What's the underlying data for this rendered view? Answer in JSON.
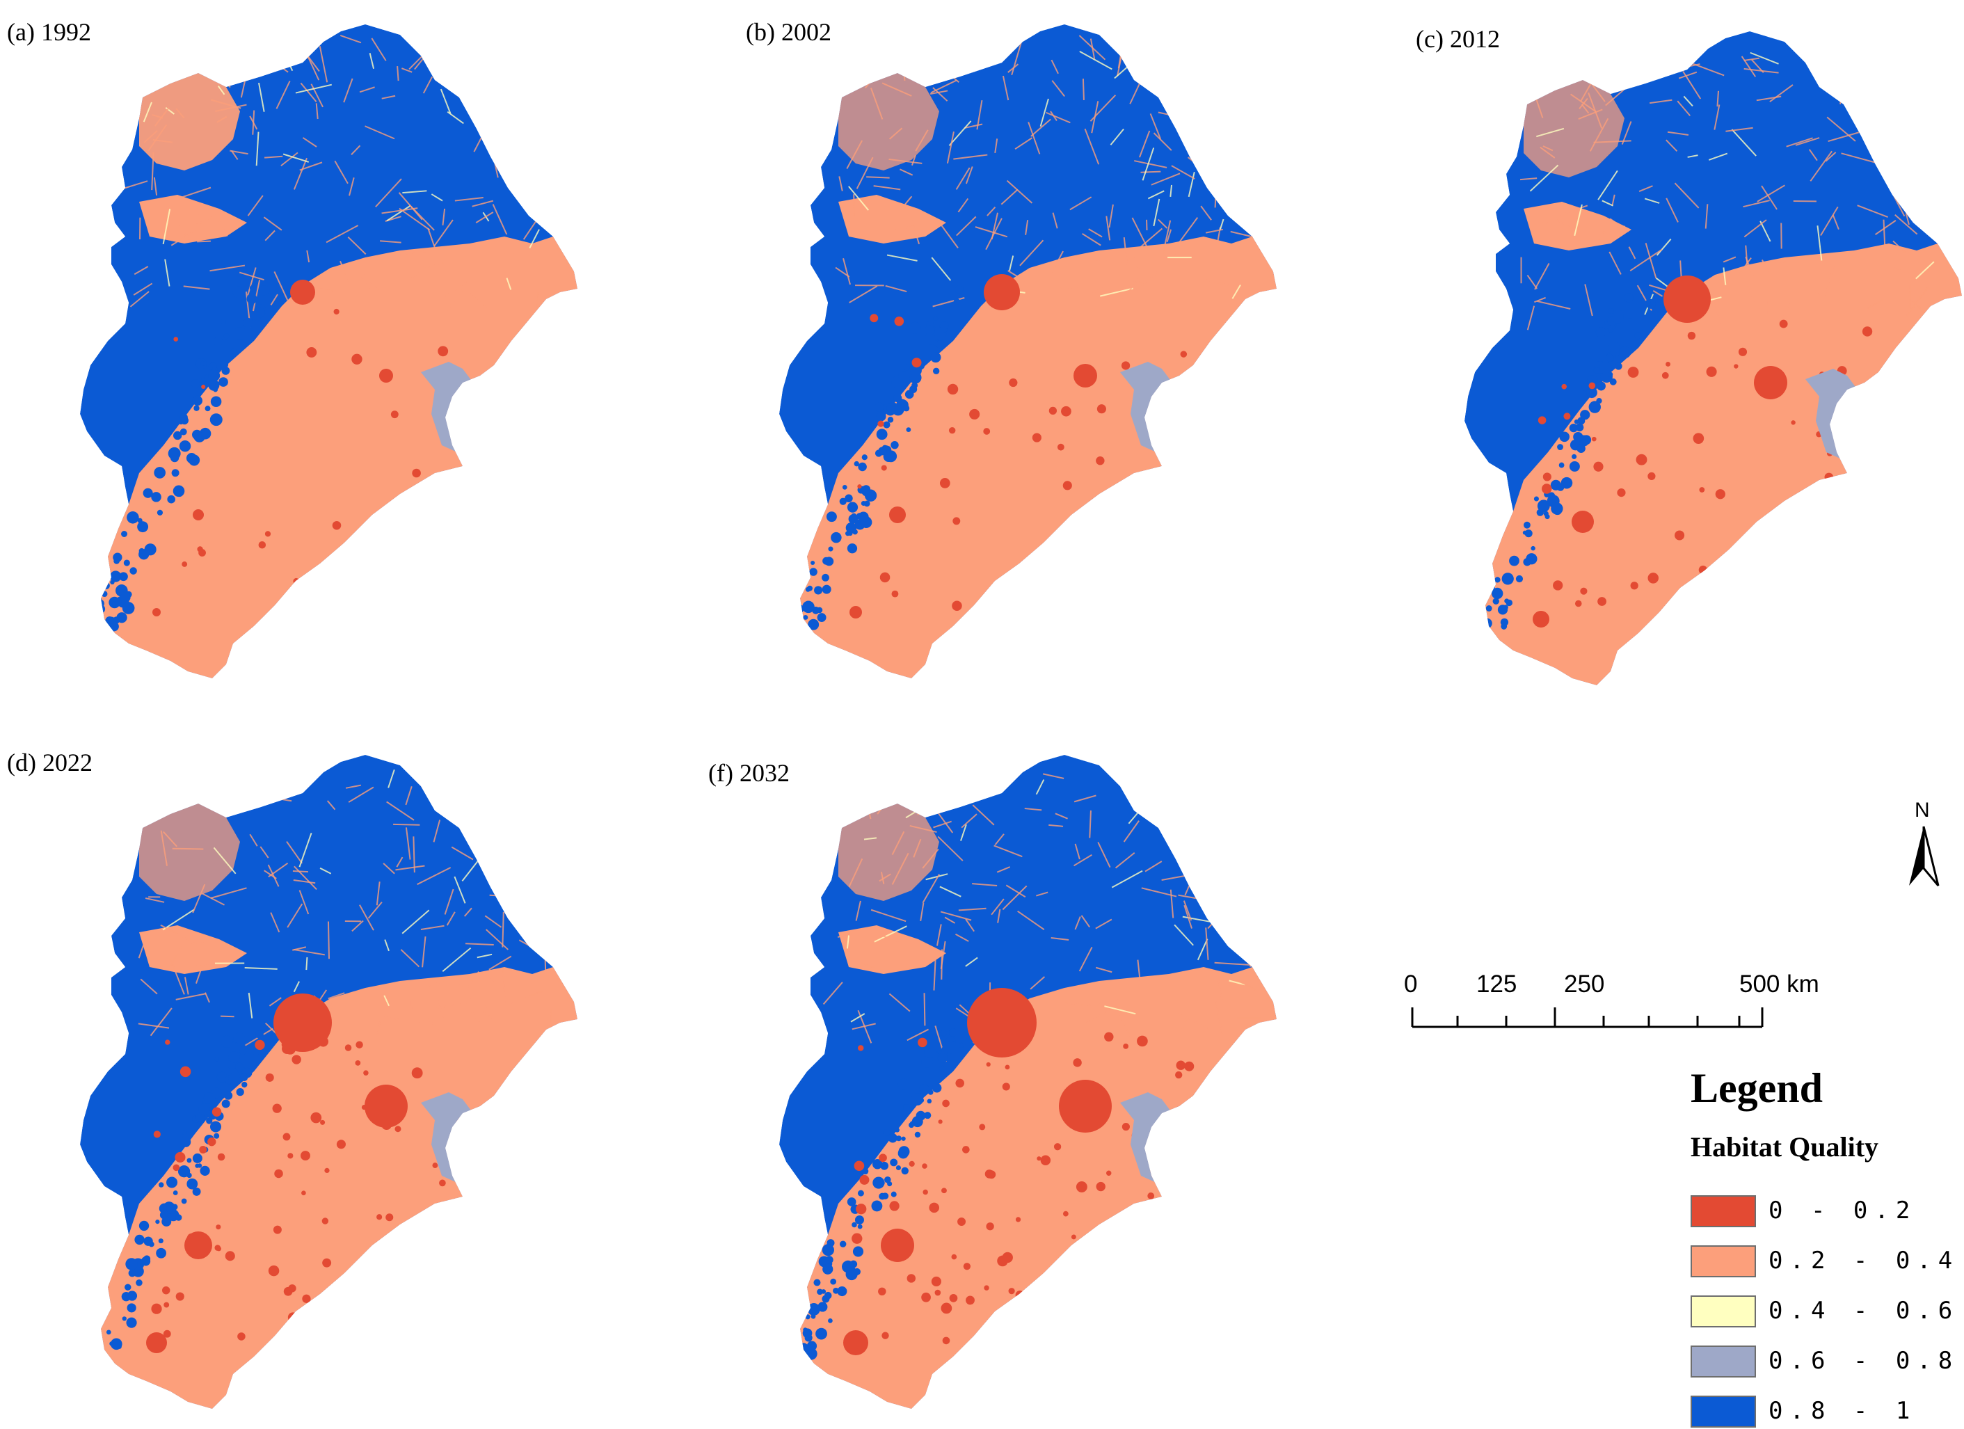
{
  "panels": [
    {
      "label": "(a) 1992",
      "year": 1992
    },
    {
      "label": "(b) 2002",
      "year": 2002
    },
    {
      "label": "(c) 2012",
      "year": 2012
    },
    {
      "label": "(d) 2022",
      "year": 2022
    },
    {
      "label": "(f) 2032",
      "year": 2032
    }
  ],
  "north_arrow": {
    "letter": "N"
  },
  "scale_bar": {
    "ticks": [
      "0",
      "125",
      "250",
      "500 km"
    ]
  },
  "legend": {
    "title": "Legend",
    "subtitle": "Habitat Quality",
    "classes": [
      {
        "label": "0 - 0.2",
        "color": "#e34a33"
      },
      {
        "label": "0.2 - 0.4",
        "color": "#fc9f7b"
      },
      {
        "label": "0.4 - 0.6",
        "color": "#ffffc0"
      },
      {
        "label": "0.6 - 0.8",
        "color": "#9ea8c8"
      },
      {
        "label": "0.8 - 1",
        "color": "#0b5ad4"
      }
    ]
  },
  "colors": {
    "low": "#e34a33",
    "mid_low": "#fc9f7b",
    "mid": "#ffffc0",
    "mid_high": "#9ea8c8",
    "high": "#0b5ad4"
  }
}
